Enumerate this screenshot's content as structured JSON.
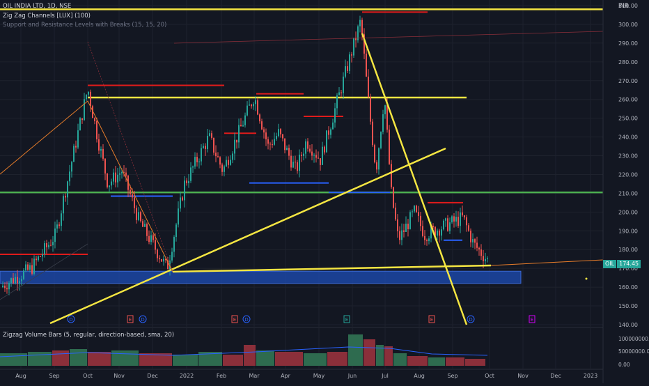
{
  "header": {
    "symbol_line": "OIL INDIA LTD, 1D, NSE",
    "indicator_1": "Zig Zag Channels [LUX] (100)",
    "indicator_2": "Support and Resistance Levels with Breaks (15, 15, 20)",
    "currency": "INR"
  },
  "volume_pane": {
    "title": "Zigzag Volume Bars (5, regular, direction-based, sma, 20)"
  },
  "price_badge": {
    "ticker": "OIL",
    "value": "174.45"
  },
  "colors": {
    "background": "#131722",
    "up": "#26a69a",
    "down": "#ef5350",
    "trendline": "#f5e642",
    "support_green": "#4caf50",
    "resistance_red": "#e01b1b",
    "support_blue": "#2962ff",
    "zone_fill": "#1e4db7",
    "zigzag": "#e87d2a",
    "vol_up": "#2e6b4f",
    "vol_down": "#8b2f3a"
  },
  "chart_data": {
    "type": "candlestick",
    "y_axis": {
      "ylim": [
        140,
        310
      ],
      "ticks": [
        "140.00",
        "150.00",
        "160.00",
        "170.00",
        "180.00",
        "190.00",
        "200.00",
        "210.00",
        "220.00",
        "230.00",
        "240.00",
        "250.00",
        "260.00",
        "270.00",
        "280.00",
        "290.00",
        "300.00",
        "310.00"
      ]
    },
    "x_axis": {
      "ticks": [
        "Aug",
        "Sep",
        "Oct",
        "Nov",
        "Dec",
        "2022",
        "Feb",
        "Mar",
        "Apr",
        "May",
        "Jun",
        "Jul",
        "Aug",
        "Sep",
        "Oct",
        "Nov",
        "Dec",
        "2023"
      ]
    },
    "last_price": 174.45,
    "swing_points": [
      {
        "month": "Jul-21",
        "close": 160
      },
      {
        "month": "Aug-21",
        "close": 170
      },
      {
        "month": "Sep-21",
        "close": 188
      },
      {
        "month": "Oct-21",
        "close": 266
      },
      {
        "month": "Oct-21b",
        "close": 240
      },
      {
        "month": "Nov-21",
        "close": 215
      },
      {
        "month": "Nov-21b",
        "close": 222
      },
      {
        "month": "Dec-21",
        "close": 195
      },
      {
        "month": "Dec-21b",
        "close": 170
      },
      {
        "month": "Jan-22",
        "close": 215
      },
      {
        "month": "Feb-22",
        "close": 240
      },
      {
        "month": "Feb-22b",
        "close": 222
      },
      {
        "month": "Mar-22",
        "close": 262
      },
      {
        "month": "Mar-22b",
        "close": 235
      },
      {
        "month": "Apr-22",
        "close": 242
      },
      {
        "month": "Apr-22b",
        "close": 222
      },
      {
        "month": "May-22",
        "close": 238
      },
      {
        "month": "May-22b",
        "close": 228
      },
      {
        "month": "Jun-22",
        "close": 302
      },
      {
        "month": "Jun-22b",
        "close": 255
      },
      {
        "month": "Jun-22c",
        "close": 222
      },
      {
        "month": "Jun-22d",
        "close": 262
      },
      {
        "month": "Jul-22",
        "close": 210
      },
      {
        "month": "Jul-22b",
        "close": 185
      },
      {
        "month": "Aug-22",
        "close": 200
      },
      {
        "month": "Aug-22b",
        "close": 188
      },
      {
        "month": "Sep-22",
        "close": 197
      },
      {
        "month": "Sep-22b",
        "close": 183
      },
      {
        "month": "Sep-22c",
        "close": 174.45
      }
    ],
    "horizontal_levels": [
      {
        "name": "yellow-top",
        "value": 308
      },
      {
        "name": "yellow-upper",
        "value": 261
      },
      {
        "name": "green-support",
        "value": 210.5
      },
      {
        "name": "resistance-1",
        "value": 177.5
      },
      {
        "name": "resistance-2",
        "value": 267.5
      },
      {
        "name": "resistance-3",
        "value": 242
      },
      {
        "name": "resistance-4",
        "value": 263
      },
      {
        "name": "resistance-5",
        "value": 251
      },
      {
        "name": "resistance-6",
        "value": 306.5
      },
      {
        "name": "resistance-7",
        "value": 205
      },
      {
        "name": "support-1",
        "value": 208.5
      },
      {
        "name": "support-2",
        "value": 215.5
      },
      {
        "name": "support-3",
        "value": 210.5
      },
      {
        "name": "support-4",
        "value": 185
      }
    ],
    "zone": {
      "low": 162,
      "high": 168.5
    },
    "event_markers": [
      "D",
      "E",
      "D",
      "E",
      "D",
      "E",
      "E",
      "D",
      "E"
    ],
    "volume": {
      "ylim": [
        0,
        100000000
      ],
      "ticks": [
        "0.00",
        "50000000.00",
        "100000000.00"
      ]
    }
  }
}
